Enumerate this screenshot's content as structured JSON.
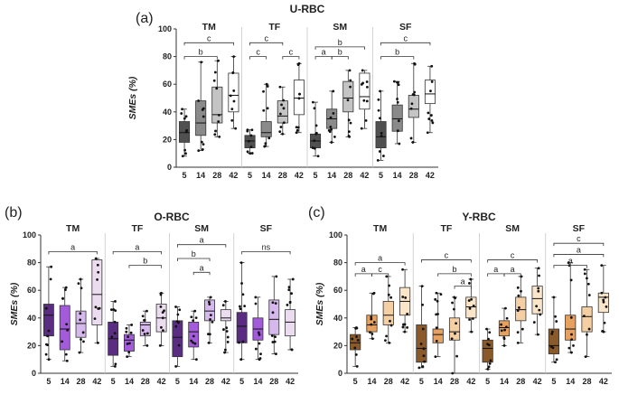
{
  "figure": {
    "panels": [
      "(a)",
      "(b)",
      "(c)"
    ]
  },
  "chart_data": [
    {
      "type": "box",
      "panel_label": "(a)",
      "title": "U-RBC",
      "ylabel": "SMEs (%)",
      "ylim": [
        0,
        100
      ],
      "yticks": [
        0,
        20,
        40,
        60,
        80,
        100
      ],
      "categories": [
        "5",
        "14",
        "28",
        "42"
      ],
      "colors": [
        "#505050",
        "#8a8a8a",
        "#c4c4c4",
        "#ffffff"
      ],
      "groups": [
        {
          "name": "TM",
          "boxes": [
            {
              "min": 8,
              "q1": 18,
              "median": 25,
              "q3": 33,
              "max": 42
            },
            {
              "min": 12,
              "q1": 23,
              "median": 32,
              "q3": 48,
              "max": 76
            },
            {
              "min": 22,
              "q1": 32,
              "median": 38,
              "q3": 58,
              "max": 77
            },
            {
              "min": 28,
              "q1": 40,
              "median": 52,
              "q3": 68,
              "max": 80
            }
          ],
          "brackets": [
            {
              "from": 0,
              "to": 2,
              "label": "b",
              "y": 80
            },
            {
              "from": 0,
              "to": 3,
              "label": "c",
              "y": 90
            }
          ]
        },
        {
          "name": "TF",
          "boxes": [
            {
              "min": 10,
              "q1": 14,
              "median": 19,
              "q3": 23,
              "max": 27
            },
            {
              "min": 15,
              "q1": 22,
              "median": 25,
              "q3": 33,
              "max": 60
            },
            {
              "min": 24,
              "q1": 32,
              "median": 37,
              "q3": 48,
              "max": 58
            },
            {
              "min": 25,
              "q1": 38,
              "median": 50,
              "q3": 63,
              "max": 75
            }
          ],
          "brackets": [
            {
              "from": 0,
              "to": 1,
              "label": "c",
              "y": 80
            },
            {
              "from": 2,
              "to": 3,
              "label": "c",
              "y": 80
            },
            {
              "from": 0,
              "to": 2,
              "label": "c",
              "y": 90
            }
          ]
        },
        {
          "name": "SM",
          "boxes": [
            {
              "min": 8,
              "q1": 14,
              "median": 19,
              "q3": 24,
              "max": 47
            },
            {
              "min": 18,
              "q1": 28,
              "median": 35,
              "q3": 42,
              "max": 55
            },
            {
              "min": 22,
              "q1": 40,
              "median": 50,
              "q3": 62,
              "max": 70
            },
            {
              "min": 28,
              "q1": 42,
              "median": 51,
              "q3": 68,
              "max": 70
            }
          ],
          "brackets": [
            {
              "from": 0,
              "to": 1,
              "label": "a",
              "y": 80
            },
            {
              "from": 1,
              "to": 2,
              "label": "b",
              "y": 80
            },
            {
              "from": 0,
              "to": 3,
              "label": "b",
              "y": 87
            }
          ]
        },
        {
          "name": "SF",
          "boxes": [
            {
              "min": 5,
              "q1": 14,
              "median": 22,
              "q3": 33,
              "max": 55
            },
            {
              "min": 17,
              "q1": 26,
              "median": 35,
              "q3": 45,
              "max": 62
            },
            {
              "min": 18,
              "q1": 36,
              "median": 42,
              "q3": 52,
              "max": 75
            },
            {
              "min": 25,
              "q1": 46,
              "median": 53,
              "q3": 63,
              "max": 73
            }
          ],
          "brackets": [
            {
              "from": 0,
              "to": 2,
              "label": "b",
              "y": 80
            },
            {
              "from": 0,
              "to": 3,
              "label": "c",
              "y": 90
            }
          ]
        }
      ]
    },
    {
      "type": "box",
      "panel_label": "(b)",
      "title": "O-RBC",
      "ylabel": "SMEs (%)",
      "ylim": [
        0,
        100
      ],
      "yticks": [
        0,
        20,
        40,
        60,
        80,
        100
      ],
      "categories": [
        "5",
        "14",
        "28",
        "42"
      ],
      "colors": [
        "#5a2d82",
        "#a35bdb",
        "#d6b9ec",
        "#ecdcf0"
      ],
      "groups": [
        {
          "name": "TM",
          "boxes": [
            {
              "min": 10,
              "q1": 27,
              "median": 42,
              "q3": 50,
              "max": 77
            },
            {
              "min": 9,
              "q1": 17,
              "median": 32,
              "q3": 49,
              "max": 62
            },
            {
              "min": 15,
              "q1": 26,
              "median": 36,
              "q3": 45,
              "max": 68
            },
            {
              "min": 22,
              "q1": 35,
              "median": 57,
              "q3": 82,
              "max": 83
            }
          ],
          "brackets": [
            {
              "from": 0,
              "to": 3,
              "label": "a",
              "y": 88
            }
          ]
        },
        {
          "name": "TF",
          "boxes": [
            {
              "min": 5,
              "q1": 13,
              "median": 25,
              "q3": 37,
              "max": 52
            },
            {
              "min": 12,
              "q1": 16,
              "median": 24,
              "q3": 28,
              "max": 35
            },
            {
              "min": 20,
              "q1": 27,
              "median": 35,
              "q3": 37,
              "max": 45
            },
            {
              "min": 20,
              "q1": 30,
              "median": 40,
              "q3": 50,
              "max": 58
            }
          ],
          "brackets": [
            {
              "from": 1,
              "to": 3,
              "label": "b",
              "y": 78
            },
            {
              "from": 0,
              "to": 3,
              "label": "a",
              "y": 88
            }
          ]
        },
        {
          "name": "SM",
          "boxes": [
            {
              "min": 5,
              "q1": 12,
              "median": 26,
              "q3": 38,
              "max": 48
            },
            {
              "min": 10,
              "q1": 19,
              "median": 30,
              "q3": 37,
              "max": 45
            },
            {
              "min": 22,
              "q1": 38,
              "median": 45,
              "q3": 53,
              "max": 55
            },
            {
              "min": 15,
              "q1": 38,
              "median": 40,
              "q3": 46,
              "max": 52
            }
          ],
          "brackets": [
            {
              "from": 1,
              "to": 2,
              "label": "a",
              "y": 73
            },
            {
              "from": 0,
              "to": 2,
              "label": "b",
              "y": 83
            },
            {
              "from": 0,
              "to": 3,
              "label": "a",
              "y": 93
            }
          ]
        },
        {
          "name": "SF",
          "boxes": [
            {
              "min": 10,
              "q1": 22,
              "median": 34,
              "q3": 44,
              "max": 80
            },
            {
              "min": 10,
              "q1": 24,
              "median": 32,
              "q3": 40,
              "max": 55
            },
            {
              "min": 14,
              "q1": 28,
              "median": 39,
              "q3": 53,
              "max": 70
            },
            {
              "min": 17,
              "q1": 27,
              "median": 37,
              "q3": 46,
              "max": 68
            }
          ],
          "brackets": [
            {
              "from": 0,
              "to": 3,
              "label": "ns",
              "y": 88
            }
          ]
        }
      ]
    },
    {
      "type": "box",
      "panel_label": "(c)",
      "title": "Y-RBC",
      "ylabel": "SMEs (%)",
      "ylim": [
        0,
        100
      ],
      "yticks": [
        0,
        20,
        40,
        60,
        80,
        100
      ],
      "categories": [
        "5",
        "14",
        "28",
        "42"
      ],
      "colors": [
        "#8a5a2b",
        "#e6a05f",
        "#f4cfa4",
        "#fbe5c8"
      ],
      "groups": [
        {
          "name": "TM",
          "boxes": [
            {
              "min": 5,
              "q1": 17,
              "median": 22,
              "q3": 28,
              "max": 33
            },
            {
              "min": 25,
              "q1": 30,
              "median": 35,
              "q3": 42,
              "max": 58
            },
            {
              "min": 22,
              "q1": 35,
              "median": 42,
              "q3": 52,
              "max": 70
            },
            {
              "min": 30,
              "q1": 42,
              "median": 52,
              "q3": 62,
              "max": 75
            }
          ],
          "brackets": [
            {
              "from": 0,
              "to": 1,
              "label": "a",
              "y": 72
            },
            {
              "from": 1,
              "to": 2,
              "label": "c",
              "y": 72
            },
            {
              "from": 0,
              "to": 3,
              "label": "a",
              "y": 80
            }
          ]
        },
        {
          "name": "TF",
          "boxes": [
            {
              "min": 4,
              "q1": 8,
              "median": 18,
              "q3": 35,
              "max": 63
            },
            {
              "min": 12,
              "q1": 22,
              "median": 28,
              "q3": 32,
              "max": 58
            },
            {
              "min": 0,
              "q1": 24,
              "median": 30,
              "q3": 40,
              "max": 55
            },
            {
              "min": 30,
              "q1": 40,
              "median": 48,
              "q3": 55,
              "max": 68
            }
          ],
          "brackets": [
            {
              "from": 2,
              "to": 3,
              "label": "a",
              "y": 63
            },
            {
              "from": 1,
              "to": 3,
              "label": "b",
              "y": 72
            },
            {
              "from": 0,
              "to": 3,
              "label": "c",
              "y": 82
            }
          ]
        },
        {
          "name": "SM",
          "boxes": [
            {
              "min": 3,
              "q1": 8,
              "median": 18,
              "q3": 24,
              "max": 32
            },
            {
              "min": 20,
              "q1": 27,
              "median": 33,
              "q3": 38,
              "max": 47
            },
            {
              "min": 22,
              "q1": 38,
              "median": 46,
              "q3": 55,
              "max": 70
            },
            {
              "min": 28,
              "q1": 43,
              "median": 54,
              "q3": 63,
              "max": 76
            }
          ],
          "brackets": [
            {
              "from": 0,
              "to": 1,
              "label": "a",
              "y": 72
            },
            {
              "from": 1,
              "to": 2,
              "label": "a",
              "y": 72
            },
            {
              "from": 0,
              "to": 3,
              "label": "c",
              "y": 82
            }
          ]
        },
        {
          "name": "SF",
          "boxes": [
            {
              "min": 8,
              "q1": 14,
              "median": 20,
              "q3": 32,
              "max": 55
            },
            {
              "min": 15,
              "q1": 24,
              "median": 32,
              "q3": 42,
              "max": 80
            },
            {
              "min": 12,
              "q1": 30,
              "median": 41,
              "q3": 48,
              "max": 75
            },
            {
              "min": 30,
              "q1": 44,
              "median": 55,
              "q3": 58,
              "max": 78
            }
          ],
          "brackets": [
            {
              "from": 0,
              "to": 2,
              "label": "a",
              "y": 78
            },
            {
              "from": 0,
              "to": 3,
              "label": "a",
              "y": 86
            },
            {
              "from": 0,
              "to": 3,
              "label": "c",
              "y": 94
            }
          ]
        }
      ]
    }
  ]
}
